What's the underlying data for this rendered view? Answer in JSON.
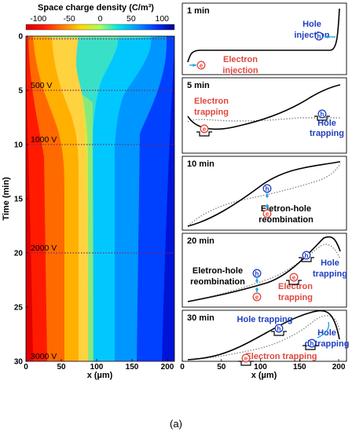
{
  "figure_label": "(a)",
  "colors": {
    "blue_label": "#1f3fbf",
    "red_label": "#e0473f",
    "arrow": "#19a7e0",
    "dotted": "#7a2a6a"
  },
  "chart_data": [
    {
      "type": "heatmap",
      "title": "Space charge density (C/m³)",
      "colorbar_ticks": [
        "-100",
        "-50",
        "0",
        "50",
        "100"
      ],
      "colorbar_range": [
        -120,
        120
      ],
      "colormap": "jet",
      "xlabel": "x (µm)",
      "ylabel": "Time (min)",
      "xlim": [
        0,
        210
      ],
      "ylim": [
        30,
        0
      ],
      "x_ticks": [
        "0",
        "50",
        "100",
        "150",
        "200"
      ],
      "y_ticks": [
        "0",
        "5",
        "10",
        "15",
        "20",
        "25",
        "30"
      ],
      "voltage_lines": [
        {
          "time": 0.25,
          "label": ""
        },
        {
          "time": 5,
          "label": "500 V"
        },
        {
          "time": 10,
          "label": "1000 V"
        },
        {
          "time": 20,
          "label": "2000 V"
        },
        {
          "time": 30,
          "label": "3000 V"
        }
      ]
    },
    {
      "type": "line",
      "panels": [
        {
          "time_label": "1 min",
          "annotations": [
            {
              "text": "Hole",
              "color": "blue"
            },
            {
              "text": "injection",
              "color": "blue"
            },
            {
              "text": "Electron",
              "color": "red"
            },
            {
              "text": "injection",
              "color": "red"
            }
          ]
        },
        {
          "time_label": "5 min",
          "annotations": [
            {
              "text": "Electron",
              "color": "red"
            },
            {
              "text": "trapping",
              "color": "red"
            },
            {
              "text": "Hole",
              "color": "blue"
            },
            {
              "text": "trapping",
              "color": "blue"
            }
          ]
        },
        {
          "time_label": "10 min",
          "annotations": [
            {
              "text": "Eletron-hole",
              "color": "black"
            },
            {
              "text": "reombination",
              "color": "black"
            }
          ]
        },
        {
          "time_label": "20 min",
          "annotations": [
            {
              "text": "Eletron-hole",
              "color": "black"
            },
            {
              "text": "reombination",
              "color": "black"
            },
            {
              "text": "Hole",
              "color": "blue"
            },
            {
              "text": "trapping",
              "color": "blue"
            },
            {
              "text": "Electron",
              "color": "red"
            },
            {
              "text": "trapping",
              "color": "red"
            }
          ]
        },
        {
          "time_label": "30 min",
          "annotations": [
            {
              "text": "Hole trapping",
              "color": "blue"
            },
            {
              "text": "Hole",
              "color": "blue"
            },
            {
              "text": "detrapping",
              "color": "blue"
            },
            {
              "text": "Electron trapping",
              "color": "red"
            }
          ]
        }
      ],
      "xlabel": "x (µm)",
      "xlim": [
        0,
        210
      ],
      "x_ticks": [
        "0",
        "50",
        "100",
        "150",
        "200"
      ]
    }
  ]
}
